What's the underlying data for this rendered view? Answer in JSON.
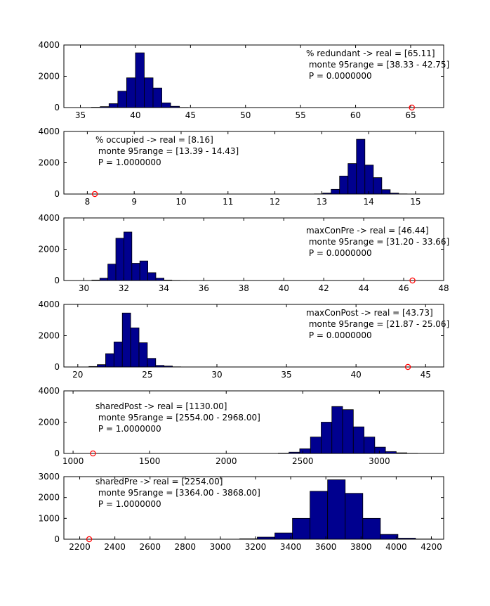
{
  "colors": {
    "bar_fill": "#00008f",
    "bar_edge": "#000000",
    "real_marker": "#ff0000",
    "background": "#ffffff"
  },
  "chart_data": [
    {
      "type": "bar",
      "title": "",
      "xlim": [
        33.5,
        68
      ],
      "ylim": [
        0,
        4000
      ],
      "xticks": [
        35,
        40,
        45,
        50,
        55,
        60,
        65
      ],
      "yticks": [
        0,
        2000,
        4000
      ],
      "bins": [
        {
          "x0": 36.0,
          "x1": 36.8,
          "count": 20
        },
        {
          "x0": 36.8,
          "x1": 37.6,
          "count": 60
        },
        {
          "x0": 37.6,
          "x1": 38.4,
          "count": 250
        },
        {
          "x0": 38.4,
          "x1": 39.2,
          "count": 1050
        },
        {
          "x0": 39.2,
          "x1": 40.0,
          "count": 1900
        },
        {
          "x0": 40.0,
          "x1": 40.8,
          "count": 3500
        },
        {
          "x0": 40.8,
          "x1": 41.6,
          "count": 1900
        },
        {
          "x0": 41.6,
          "x1": 42.4,
          "count": 1250
        },
        {
          "x0": 42.4,
          "x1": 43.2,
          "count": 300
        },
        {
          "x0": 43.2,
          "x1": 44.0,
          "count": 80
        },
        {
          "x0": 44.0,
          "x1": 44.8,
          "count": 10
        }
      ],
      "real_value": 65.11,
      "annotation": {
        "position": "top-right",
        "lines": [
          "% redundant -> real = [65.11]",
          " monte 95range = [38.33 - 42.75]",
          " P = 0.0000000"
        ]
      }
    },
    {
      "type": "bar",
      "title": "",
      "xlim": [
        7.5,
        15.6
      ],
      "ylim": [
        0,
        4000
      ],
      "xticks": [
        8,
        9,
        10,
        11,
        12,
        13,
        14,
        15
      ],
      "yticks": [
        0,
        2000,
        4000
      ],
      "bins": [
        {
          "x0": 12.84,
          "x1": 13.02,
          "count": 10
        },
        {
          "x0": 13.02,
          "x1": 13.2,
          "count": 60
        },
        {
          "x0": 13.2,
          "x1": 13.38,
          "count": 300
        },
        {
          "x0": 13.38,
          "x1": 13.56,
          "count": 1150
        },
        {
          "x0": 13.56,
          "x1": 13.74,
          "count": 1950
        },
        {
          "x0": 13.74,
          "x1": 13.92,
          "count": 3500
        },
        {
          "x0": 13.92,
          "x1": 14.1,
          "count": 1850
        },
        {
          "x0": 14.1,
          "x1": 14.28,
          "count": 1050
        },
        {
          "x0": 14.28,
          "x1": 14.46,
          "count": 280
        },
        {
          "x0": 14.46,
          "x1": 14.64,
          "count": 60
        },
        {
          "x0": 14.64,
          "x1": 14.82,
          "count": 10
        }
      ],
      "real_value": 8.16,
      "annotation": {
        "position": "top-left",
        "lines": [
          "% occupied -> real = [8.16]",
          " monte 95range = [13.39 - 14.43]",
          " P = 1.0000000"
        ]
      }
    },
    {
      "type": "bar",
      "title": "",
      "xlim": [
        29,
        48
      ],
      "ylim": [
        0,
        4000
      ],
      "xticks": [
        30,
        32,
        34,
        36,
        38,
        40,
        42,
        44,
        46,
        48
      ],
      "yticks": [
        0,
        2000,
        4000
      ],
      "bins": [
        {
          "x0": 30.4,
          "x1": 30.8,
          "count": 30
        },
        {
          "x0": 30.8,
          "x1": 31.2,
          "count": 150
        },
        {
          "x0": 31.2,
          "x1": 31.6,
          "count": 1050
        },
        {
          "x0": 31.6,
          "x1": 32.0,
          "count": 2700
        },
        {
          "x0": 32.0,
          "x1": 32.4,
          "count": 3100
        },
        {
          "x0": 32.4,
          "x1": 32.8,
          "count": 1100
        },
        {
          "x0": 32.8,
          "x1": 33.2,
          "count": 1250
        },
        {
          "x0": 33.2,
          "x1": 33.6,
          "count": 500
        },
        {
          "x0": 33.6,
          "x1": 34.0,
          "count": 150
        },
        {
          "x0": 34.0,
          "x1": 34.4,
          "count": 30
        },
        {
          "x0": 34.4,
          "x1": 34.8,
          "count": 10
        },
        {
          "x0": 34.8,
          "x1": 35.2,
          "count": 5
        }
      ],
      "real_value": 46.44,
      "annotation": {
        "position": "top-right",
        "lines": [
          "maxConPre -> real = [46.44]",
          " monte 95range = [31.20 - 33.66]",
          " P = 0.0000000"
        ]
      }
    },
    {
      "type": "bar",
      "title": "",
      "xlim": [
        19,
        46.3
      ],
      "ylim": [
        0,
        4000
      ],
      "xticks": [
        20,
        25,
        30,
        35,
        40,
        45
      ],
      "yticks": [
        0,
        2000,
        4000
      ],
      "bins": [
        {
          "x0": 20.8,
          "x1": 21.4,
          "count": 30
        },
        {
          "x0": 21.4,
          "x1": 22.0,
          "count": 150
        },
        {
          "x0": 22.0,
          "x1": 22.6,
          "count": 850
        },
        {
          "x0": 22.6,
          "x1": 23.2,
          "count": 1600
        },
        {
          "x0": 23.2,
          "x1": 23.8,
          "count": 3450
        },
        {
          "x0": 23.8,
          "x1": 24.4,
          "count": 2500
        },
        {
          "x0": 24.4,
          "x1": 25.0,
          "count": 1550
        },
        {
          "x0": 25.0,
          "x1": 25.6,
          "count": 550
        },
        {
          "x0": 25.6,
          "x1": 26.2,
          "count": 100
        },
        {
          "x0": 26.2,
          "x1": 26.8,
          "count": 60
        },
        {
          "x0": 26.8,
          "x1": 27.4,
          "count": 10
        }
      ],
      "real_value": 43.73,
      "annotation": {
        "position": "top-right",
        "lines": [
          "maxConPost -> real = [43.73]",
          " monte 95range = [21.87 - 25.06]",
          " P = 0.0000000"
        ]
      }
    },
    {
      "type": "bar",
      "title": "",
      "xlim": [
        940,
        3420
      ],
      "ylim": [
        0,
        4000
      ],
      "xticks": [
        1000,
        1500,
        2000,
        2500,
        3000
      ],
      "yticks": [
        0,
        2000,
        4000
      ],
      "bins": [
        {
          "x0": 2340,
          "x1": 2410,
          "count": 20
        },
        {
          "x0": 2410,
          "x1": 2480,
          "count": 80
        },
        {
          "x0": 2480,
          "x1": 2550,
          "count": 300
        },
        {
          "x0": 2550,
          "x1": 2620,
          "count": 1050
        },
        {
          "x0": 2620,
          "x1": 2690,
          "count": 2000
        },
        {
          "x0": 2690,
          "x1": 2760,
          "count": 3000
        },
        {
          "x0": 2760,
          "x1": 2830,
          "count": 2800
        },
        {
          "x0": 2830,
          "x1": 2900,
          "count": 1700
        },
        {
          "x0": 2900,
          "x1": 2970,
          "count": 1050
        },
        {
          "x0": 2970,
          "x1": 3040,
          "count": 400
        },
        {
          "x0": 3040,
          "x1": 3110,
          "count": 120
        },
        {
          "x0": 3110,
          "x1": 3180,
          "count": 40
        },
        {
          "x0": 3180,
          "x1": 3250,
          "count": 10
        }
      ],
      "real_value": 1130.0,
      "annotation": {
        "position": "top-left",
        "lines": [
          "sharedPost -> real = [1130.00]",
          " monte 95range = [2554.00 - 2968.00]",
          " P = 1.0000000"
        ]
      }
    },
    {
      "type": "bar",
      "title": "",
      "xlim": [
        2110,
        4270
      ],
      "ylim": [
        0,
        3000
      ],
      "xticks": [
        2200,
        2400,
        2600,
        2800,
        3000,
        3200,
        3400,
        3600,
        3800,
        4000,
        4200
      ],
      "yticks": [
        0,
        1000,
        2000,
        3000
      ],
      "bins": [
        {
          "x0": 3110,
          "x1": 3210,
          "count": 20
        },
        {
          "x0": 3210,
          "x1": 3310,
          "count": 100
        },
        {
          "x0": 3310,
          "x1": 3410,
          "count": 300
        },
        {
          "x0": 3410,
          "x1": 3510,
          "count": 1000
        },
        {
          "x0": 3510,
          "x1": 3610,
          "count": 2300
        },
        {
          "x0": 3610,
          "x1": 3710,
          "count": 2850
        },
        {
          "x0": 3710,
          "x1": 3810,
          "count": 2200
        },
        {
          "x0": 3810,
          "x1": 3910,
          "count": 1000
        },
        {
          "x0": 3910,
          "x1": 4010,
          "count": 230
        },
        {
          "x0": 4010,
          "x1": 4110,
          "count": 50
        },
        {
          "x0": 4110,
          "x1": 4210,
          "count": 10
        }
      ],
      "real_value": 2254.0,
      "annotation": {
        "position": "top-left",
        "lines": [
          "sharedPre -> real = [2254.00]",
          " monte 95range = [3364.00 - 3868.00]",
          " P = 1.0000000"
        ]
      }
    }
  ]
}
